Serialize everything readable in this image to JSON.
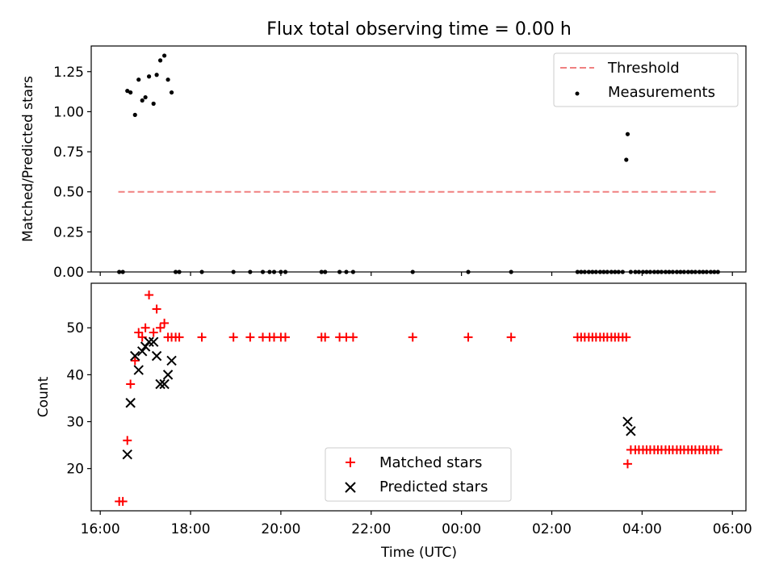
{
  "chart_data": [
    {
      "type": "scatter",
      "title": "Flux total observing time = 0.00 h",
      "ylabel": "Matched/Predicted stars",
      "xlabel": "",
      "ylim": [
        0,
        1.41
      ],
      "yticks": [
        0,
        0.25,
        0.5,
        0.75,
        1.0,
        1.25
      ],
      "ytick_labels": [
        "0.00",
        "0.25",
        "0.50",
        "0.75",
        "1.00",
        "1.25"
      ],
      "legend_position": "top-right",
      "threshold": {
        "label": "Threshold",
        "value": 0.5,
        "x_start": 16.4,
        "x_end": 29.67,
        "color": "#f08080"
      },
      "series": [
        {
          "name": "Measurements",
          "color": "#000000",
          "marker": "dot",
          "x": [
            16.42,
            16.5,
            16.6,
            16.67,
            16.77,
            16.85,
            16.93,
            17.0,
            17.08,
            17.18,
            17.25,
            17.33,
            17.42,
            17.5,
            17.58,
            17.67,
            17.75,
            18.25,
            18.95,
            19.32,
            19.6,
            19.75,
            19.85,
            20.0,
            20.1,
            20.9,
            20.98,
            21.3,
            21.45,
            21.6,
            22.92,
            24.15,
            25.1,
            26.57,
            26.65,
            26.73,
            26.82,
            26.9,
            26.98,
            27.07,
            27.15,
            27.23,
            27.32,
            27.4,
            27.48,
            27.57,
            27.65,
            27.68,
            27.75,
            27.85,
            27.93,
            28.02,
            28.1,
            28.18,
            28.27,
            28.35,
            28.43,
            28.52,
            28.6,
            28.68,
            28.77,
            28.85,
            28.93,
            29.02,
            29.1,
            29.18,
            29.27,
            29.35,
            29.43,
            29.52,
            29.6,
            29.68
          ],
          "y": [
            0,
            0,
            1.13,
            1.12,
            0.98,
            1.2,
            1.07,
            1.09,
            1.22,
            1.05,
            1.23,
            1.32,
            1.35,
            1.2,
            1.12,
            0,
            0,
            0,
            0,
            0,
            0,
            0,
            0,
            0,
            0,
            0,
            0,
            0,
            0,
            0,
            0,
            0,
            0,
            0,
            0,
            0,
            0,
            0,
            0,
            0,
            0,
            0,
            0,
            0,
            0,
            0,
            0.7,
            0.86,
            0,
            0,
            0,
            0,
            0,
            0,
            0,
            0,
            0,
            0,
            0,
            0,
            0,
            0,
            0,
            0,
            0,
            0,
            0,
            0,
            0,
            0,
            0,
            0
          ]
        }
      ]
    },
    {
      "type": "scatter",
      "title": "",
      "ylabel": "Count",
      "xlabel": "Time (UTC)",
      "ylim": [
        11,
        59.5
      ],
      "yticks": [
        20,
        30,
        40,
        50
      ],
      "ytick_labels": [
        "20",
        "30",
        "40",
        "50"
      ],
      "xlim": [
        15.8,
        30.3
      ],
      "xticks": [
        16,
        18,
        20,
        22,
        24,
        26,
        28,
        30
      ],
      "xtick_labels": [
        "16:00",
        "18:00",
        "20:00",
        "22:00",
        "00:00",
        "02:00",
        "04:00",
        "06:00"
      ],
      "legend_position": "bottom-center",
      "series": [
        {
          "name": "Matched stars",
          "color": "#ff0000",
          "marker": "plus",
          "x": [
            16.42,
            16.5,
            16.6,
            16.67,
            16.77,
            16.85,
            16.93,
            17.0,
            17.08,
            17.18,
            17.25,
            17.33,
            17.42,
            17.5,
            17.58,
            17.67,
            17.75,
            18.25,
            18.95,
            19.32,
            19.6,
            19.75,
            19.85,
            20.0,
            20.1,
            20.9,
            20.98,
            21.3,
            21.45,
            21.6,
            22.92,
            24.15,
            25.1,
            26.57,
            26.65,
            26.73,
            26.82,
            26.9,
            26.98,
            27.07,
            27.15,
            27.23,
            27.32,
            27.4,
            27.48,
            27.57,
            27.65,
            27.68,
            27.75,
            27.85,
            27.93,
            28.02,
            28.1,
            28.18,
            28.27,
            28.35,
            28.43,
            28.52,
            28.6,
            28.68,
            28.77,
            28.85,
            28.93,
            29.02,
            29.1,
            29.18,
            29.27,
            29.35,
            29.43,
            29.52,
            29.6,
            29.68
          ],
          "y": [
            13,
            13,
            26,
            38,
            43,
            49,
            48,
            50,
            57,
            49,
            54,
            50,
            51,
            48,
            48,
            48,
            48,
            48,
            48,
            48,
            48,
            48,
            48,
            48,
            48,
            48,
            48,
            48,
            48,
            48,
            48,
            48,
            48,
            48,
            48,
            48,
            48,
            48,
            48,
            48,
            48,
            48,
            48,
            48,
            48,
            48,
            48,
            21,
            24,
            24,
            24,
            24,
            24,
            24,
            24,
            24,
            24,
            24,
            24,
            24,
            24,
            24,
            24,
            24,
            24,
            24,
            24,
            24,
            24,
            24,
            24,
            24
          ]
        },
        {
          "name": "Predicted stars",
          "color": "#000000",
          "marker": "x",
          "x": [
            16.6,
            16.67,
            16.77,
            16.85,
            16.93,
            17.0,
            17.08,
            17.18,
            17.25,
            17.33,
            17.42,
            17.5,
            17.58,
            27.68,
            27.75
          ],
          "y": [
            23,
            34,
            44,
            41,
            45,
            46,
            47,
            47,
            44,
            38,
            38,
            40,
            43,
            30,
            28
          ]
        }
      ]
    }
  ]
}
